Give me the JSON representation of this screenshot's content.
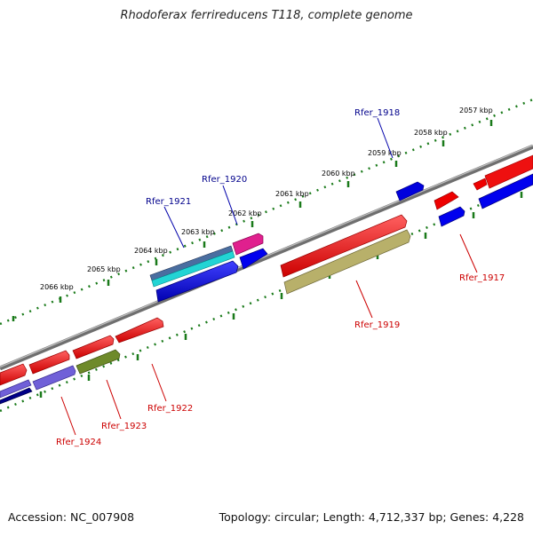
{
  "title": "Rhodoferax ferrireducens T118, complete genome",
  "accession": "Accession: NC_007908",
  "topology": "Topology: circular; Length: 4,712,337 bp; Genes: 4,228",
  "kbp_labels": [
    "2057 kbp",
    "2058 kbp",
    "2059 kbp",
    "2060 kbp",
    "2061 kbp",
    "2062 kbp",
    "2063 kbp",
    "2064 kbp",
    "2065 kbp",
    "2066 kbp"
  ],
  "gene_labels": {
    "top": [
      "Rfer_1918",
      "Rfer_1920",
      "Rfer_1921"
    ],
    "bottom": [
      "Rfer_1917",
      "Rfer_1919",
      "Rfer_1922",
      "Rfer_1923",
      "Rfer_1924"
    ]
  },
  "colors": {
    "forward_label": "#00008b",
    "reverse_label": "#cc0000",
    "backbone": "#808080",
    "ticks": "#1a7a1a"
  }
}
